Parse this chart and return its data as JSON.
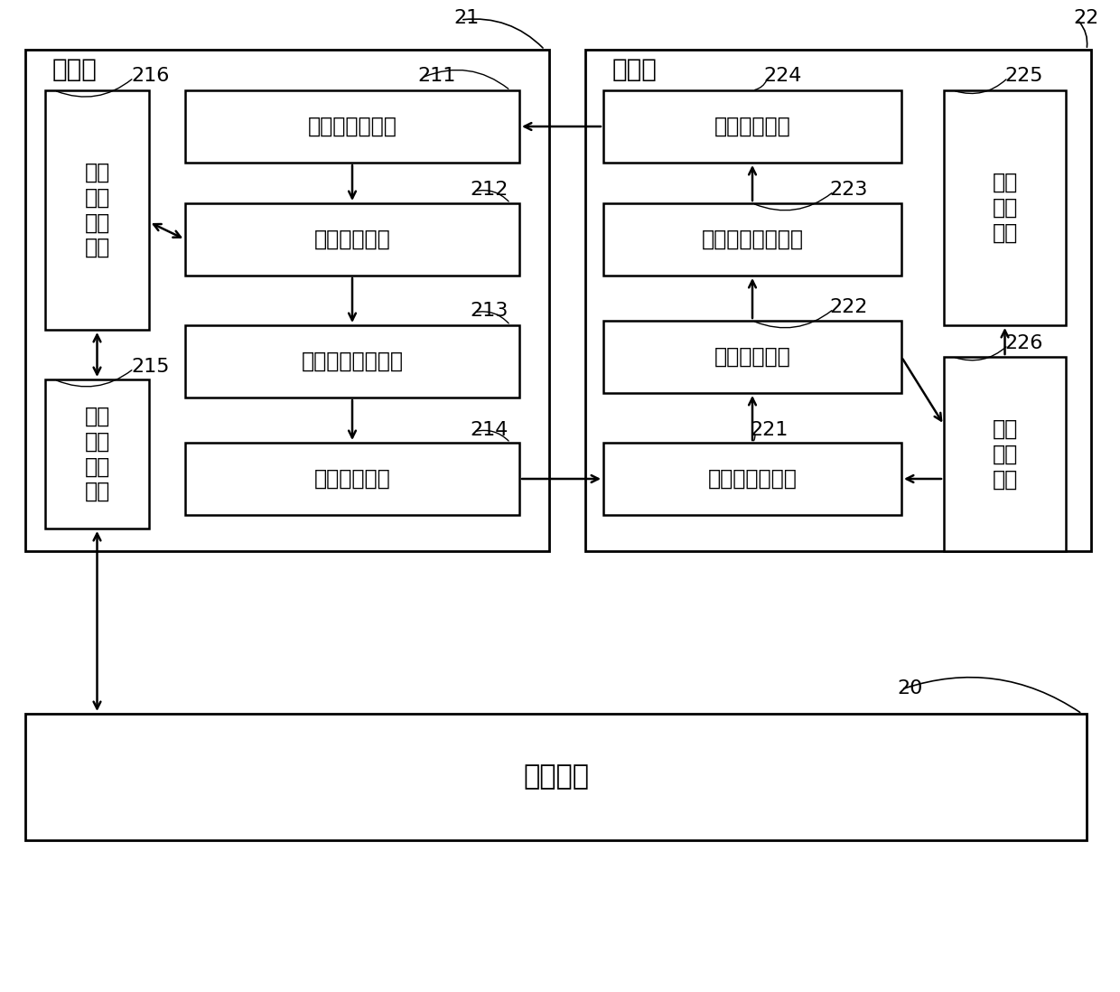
{
  "bg_color": "#ffffff",
  "label_control": "控制台",
  "label_robot": "机器人",
  "title_21": "21",
  "title_22": "22",
  "title_20": "20",
  "label_216": "216",
  "label_211": "211",
  "label_212": "212",
  "label_213": "213",
  "label_215": "215",
  "label_214": "214",
  "label_224": "224",
  "label_225": "225",
  "label_223": "223",
  "label_222": "222",
  "label_221": "221",
  "label_226": "226",
  "text_211": "第一图形识别器",
  "text_212": "第一解析单元",
  "text_213": "第一图形生成单元",
  "text_214": "第一显示单元",
  "text_215": "第一\n指令\n收发\n单元",
  "text_216": "第一\n数据\n处理\n单元",
  "text_221": "第二图形识别器",
  "text_222": "第二解析单元",
  "text_223": "第二图形生成单元",
  "text_224": "第二显示单元",
  "text_225": "运动\n控制\n单元",
  "text_226": "指令\n接收\n单元",
  "text_20": "呼叫系统",
  "font_cjk": "Noto Sans CJK SC",
  "font_size_main": 17,
  "font_size_label": 18,
  "font_size_num": 16,
  "font_size_title": 20
}
